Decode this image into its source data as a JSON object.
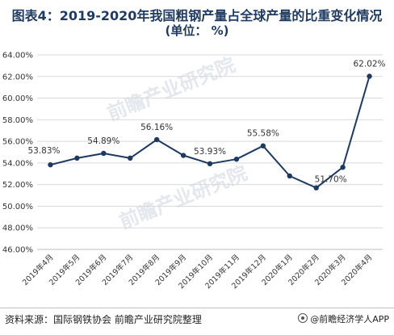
{
  "title": {
    "line1": "图表4：2019-2020年我国粗钢产量占全球产量的比重变化情况",
    "line2": "(单位：  %)"
  },
  "footer": {
    "source": "资料来源：国际钢铁协会 前瞻产业研究院整理",
    "brand": "@前瞻经济学人APP"
  },
  "watermark": [
    "前瞻产业研究院",
    "前瞻产业研究院"
  ],
  "colors": {
    "line": "#1f3a5f",
    "grid": "#d9d9d9",
    "text": "#333333"
  },
  "chart_data": {
    "type": "line",
    "categories": [
      "2019年4月",
      "2019年5月",
      "2019年6月",
      "2019年7月",
      "2019年8月",
      "2019年9月",
      "2019年10月",
      "2019年11月",
      "2019年12月",
      "2020年1月",
      "2020年2月",
      "2020年3月",
      "2020年4月"
    ],
    "series": [
      {
        "values": [
          53.83,
          54.45,
          54.89,
          54.45,
          56.16,
          54.7,
          53.93,
          54.35,
          55.58,
          52.8,
          51.7,
          53.6,
          62.02
        ]
      }
    ],
    "data_labels": [
      {
        "index": 0,
        "text": "53.83%"
      },
      {
        "index": 2,
        "text": "54.89%"
      },
      {
        "index": 4,
        "text": "56.16%"
      },
      {
        "index": 6,
        "text": "53.93%"
      },
      {
        "index": 8,
        "text": "55.58%"
      },
      {
        "index": 10,
        "text": "51.70%"
      },
      {
        "index": 12,
        "text": "62.02%"
      }
    ],
    "yticks": [
      "46.00%",
      "48.00%",
      "50.00%",
      "52.00%",
      "54.00%",
      "56.00%",
      "58.00%",
      "60.00%",
      "62.00%",
      "64.00%"
    ],
    "ylim": [
      46,
      64
    ],
    "grid": true,
    "legend": "none"
  }
}
